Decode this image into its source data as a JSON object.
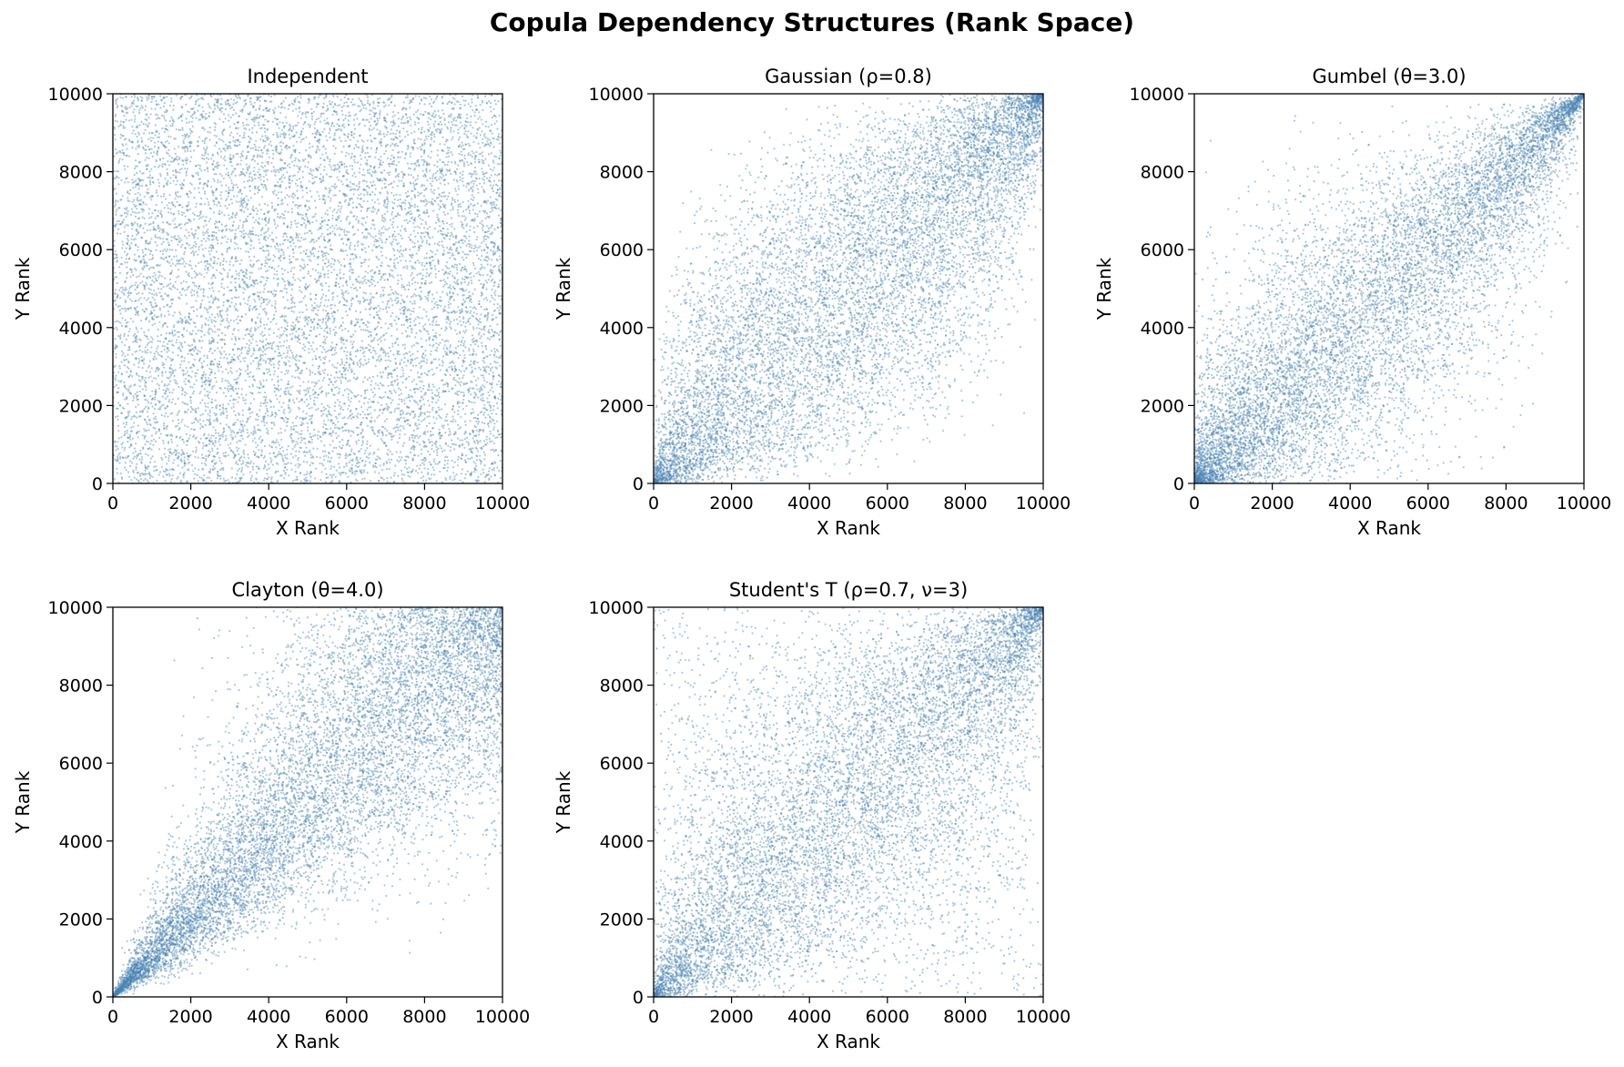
{
  "figure": {
    "title": "Copula Dependency Structures (Rank Space)",
    "point_color": "#4682b4"
  },
  "chart_data": [
    {
      "type": "scatter",
      "title": "Independent",
      "xlabel": "X Rank",
      "ylabel": "Y Rank",
      "xlim": [
        0,
        10000
      ],
      "ylim": [
        0,
        10000
      ],
      "xticks": [
        "0",
        "2000",
        "4000",
        "6000",
        "8000",
        "10000"
      ],
      "yticks": [
        "0",
        "2000",
        "4000",
        "6000",
        "8000",
        "10000"
      ],
      "n_points": 10000,
      "copula": "independent",
      "params": {}
    },
    {
      "type": "scatter",
      "title": "Gaussian (ρ=0.8)",
      "xlabel": "X Rank",
      "ylabel": "Y Rank",
      "xlim": [
        0,
        10000
      ],
      "ylim": [
        0,
        10000
      ],
      "xticks": [
        "0",
        "2000",
        "4000",
        "6000",
        "8000",
        "10000"
      ],
      "yticks": [
        "0",
        "2000",
        "4000",
        "6000",
        "8000",
        "10000"
      ],
      "n_points": 10000,
      "copula": "gaussian",
      "params": {
        "rho": 0.8
      }
    },
    {
      "type": "scatter",
      "title": "Gumbel (θ=3.0)",
      "xlabel": "X Rank",
      "ylabel": "Y Rank",
      "xlim": [
        0,
        10000
      ],
      "ylim": [
        0,
        10000
      ],
      "xticks": [
        "0",
        "2000",
        "4000",
        "6000",
        "8000",
        "10000"
      ],
      "yticks": [
        "0",
        "2000",
        "4000",
        "6000",
        "8000",
        "10000"
      ],
      "n_points": 10000,
      "copula": "gumbel",
      "params": {
        "theta": 3.0
      }
    },
    {
      "type": "scatter",
      "title": "Clayton (θ=4.0)",
      "xlabel": "X Rank",
      "ylabel": "Y Rank",
      "xlim": [
        0,
        10000
      ],
      "ylim": [
        0,
        10000
      ],
      "xticks": [
        "0",
        "2000",
        "4000",
        "6000",
        "8000",
        "10000"
      ],
      "yticks": [
        "0",
        "2000",
        "4000",
        "6000",
        "8000",
        "10000"
      ],
      "n_points": 10000,
      "copula": "clayton",
      "params": {
        "theta": 4.0
      }
    },
    {
      "type": "scatter",
      "title": "Student's T (ρ=0.7, ν=3)",
      "xlabel": "X Rank",
      "ylabel": "Y Rank",
      "xlim": [
        0,
        10000
      ],
      "ylim": [
        0,
        10000
      ],
      "xticks": [
        "0",
        "2000",
        "4000",
        "6000",
        "8000",
        "10000"
      ],
      "yticks": [
        "0",
        "2000",
        "4000",
        "6000",
        "8000",
        "10000"
      ],
      "n_points": 10000,
      "copula": "student-t",
      "params": {
        "rho": 0.7,
        "nu": 3
      }
    }
  ]
}
